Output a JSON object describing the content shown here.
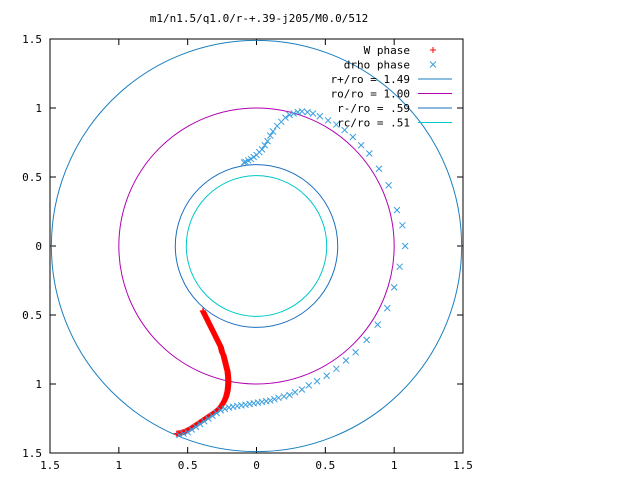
{
  "chart_data": {
    "type": "scatter",
    "title": "m1/n1.5/q1.0/r-+.39-j205/M0.0/512",
    "xlim": [
      -1.5,
      1.5
    ],
    "ylim": [
      -1.5,
      1.5
    ],
    "x_ticks": [
      -1.5,
      -1,
      -0.5,
      0,
      0.5,
      1,
      1.5
    ],
    "y_ticks": [
      -1.5,
      -1,
      -0.5,
      0,
      0.5,
      1,
      1.5
    ],
    "x_tick_labels": [
      "1.5",
      "1",
      "0.5",
      "0",
      "0.5",
      "1",
      "1.5"
    ],
    "y_tick_labels": [
      "1.5",
      "1",
      "0.5",
      "0",
      "0.5",
      "1",
      "1.5"
    ],
    "legend_position": "top-right",
    "circles": [
      {
        "name": "r+/ro = 1.49",
        "radius": 1.49,
        "color": "#1a7fbf"
      },
      {
        "name": "ro/ro = 1.00",
        "radius": 1.0,
        "color": "#b100b1"
      },
      {
        "name": "r-/ro = .59",
        "radius": 0.59,
        "color": "#1a6fbf"
      },
      {
        "name": "rc/ro = .51",
        "radius": 0.51,
        "color": "#00c8c8"
      }
    ],
    "series": [
      {
        "name": "W phase",
        "marker": "plus",
        "color": "#ff0000",
        "points": [
          [
            -0.39,
            -0.47
          ],
          [
            -0.38,
            -0.49
          ],
          [
            -0.37,
            -0.51
          ],
          [
            -0.36,
            -0.53
          ],
          [
            -0.35,
            -0.55
          ],
          [
            -0.34,
            -0.57
          ],
          [
            -0.33,
            -0.59
          ],
          [
            -0.32,
            -0.61
          ],
          [
            -0.31,
            -0.63
          ],
          [
            -0.3,
            -0.65
          ],
          [
            -0.29,
            -0.67
          ],
          [
            -0.28,
            -0.69
          ],
          [
            -0.27,
            -0.71
          ],
          [
            -0.26,
            -0.73
          ],
          [
            -0.255,
            -0.75
          ],
          [
            -0.25,
            -0.77
          ],
          [
            -0.24,
            -0.79
          ],
          [
            -0.235,
            -0.81
          ],
          [
            -0.23,
            -0.83
          ],
          [
            -0.225,
            -0.85
          ],
          [
            -0.22,
            -0.87
          ],
          [
            -0.215,
            -0.89
          ],
          [
            -0.21,
            -0.91
          ],
          [
            -0.208,
            -0.93
          ],
          [
            -0.206,
            -0.95
          ],
          [
            -0.205,
            -0.97
          ],
          [
            -0.205,
            -0.99
          ],
          [
            -0.206,
            -1.01
          ],
          [
            -0.208,
            -1.03
          ],
          [
            -0.21,
            -1.05
          ],
          [
            -0.215,
            -1.07
          ],
          [
            -0.22,
            -1.09
          ],
          [
            -0.228,
            -1.11
          ],
          [
            -0.238,
            -1.13
          ],
          [
            -0.25,
            -1.15
          ],
          [
            -0.265,
            -1.17
          ],
          [
            -0.285,
            -1.19
          ],
          [
            -0.31,
            -1.21
          ],
          [
            -0.34,
            -1.23
          ],
          [
            -0.37,
            -1.25
          ],
          [
            -0.4,
            -1.27
          ],
          [
            -0.43,
            -1.29
          ],
          [
            -0.46,
            -1.31
          ],
          [
            -0.49,
            -1.33
          ],
          [
            -0.52,
            -1.345
          ],
          [
            -0.55,
            -1.355
          ],
          [
            -0.58,
            -1.36
          ]
        ]
      },
      {
        "name": "drho phase",
        "marker": "cross",
        "color": "#3b9fe0",
        "points": [
          [
            -0.56,
            -1.37
          ],
          [
            -0.53,
            -1.36
          ],
          [
            -0.5,
            -1.35
          ],
          [
            -0.47,
            -1.33
          ],
          [
            -0.44,
            -1.31
          ],
          [
            -0.41,
            -1.29
          ],
          [
            -0.38,
            -1.27
          ],
          [
            -0.35,
            -1.25
          ],
          [
            -0.32,
            -1.23
          ],
          [
            -0.29,
            -1.21
          ],
          [
            -0.26,
            -1.19
          ],
          [
            -0.23,
            -1.18
          ],
          [
            -0.2,
            -1.17
          ],
          [
            -0.17,
            -1.165
          ],
          [
            -0.14,
            -1.16
          ],
          [
            -0.11,
            -1.155
          ],
          [
            -0.08,
            -1.15
          ],
          [
            -0.05,
            -1.145
          ],
          [
            -0.02,
            -1.14
          ],
          [
            0.01,
            -1.135
          ],
          [
            0.04,
            -1.13
          ],
          [
            0.07,
            -1.125
          ],
          [
            0.1,
            -1.12
          ],
          [
            0.13,
            -1.11
          ],
          [
            0.16,
            -1.1
          ],
          [
            0.2,
            -1.09
          ],
          [
            0.24,
            -1.08
          ],
          [
            0.28,
            -1.06
          ],
          [
            0.33,
            -1.04
          ],
          [
            0.38,
            -1.01
          ],
          [
            0.44,
            -0.98
          ],
          [
            0.51,
            -0.94
          ],
          [
            0.58,
            -0.89
          ],
          [
            0.65,
            -0.83
          ],
          [
            0.72,
            -0.77
          ],
          [
            0.8,
            -0.68
          ],
          [
            0.88,
            -0.57
          ],
          [
            0.95,
            -0.45
          ],
          [
            1.0,
            -0.3
          ],
          [
            1.04,
            -0.15
          ],
          [
            1.08,
            0.0
          ],
          [
            1.06,
            0.15
          ],
          [
            1.02,
            0.26
          ],
          [
            0.96,
            0.44
          ],
          [
            0.89,
            0.56
          ],
          [
            0.82,
            0.67
          ],
          [
            0.76,
            0.73
          ],
          [
            0.7,
            0.79
          ],
          [
            0.64,
            0.84
          ],
          [
            0.58,
            0.88
          ],
          [
            0.52,
            0.91
          ],
          [
            0.46,
            0.94
          ],
          [
            0.41,
            0.96
          ],
          [
            0.37,
            0.97
          ],
          [
            0.33,
            0.975
          ],
          [
            0.3,
            0.97
          ],
          [
            0.27,
            0.96
          ],
          [
            0.24,
            0.95
          ],
          [
            0.21,
            0.93
          ],
          [
            0.18,
            0.9
          ],
          [
            0.15,
            0.87
          ],
          [
            0.12,
            0.83
          ],
          [
            0.1,
            0.8
          ],
          [
            0.08,
            0.76
          ],
          [
            0.06,
            0.73
          ],
          [
            0.04,
            0.7
          ],
          [
            0.02,
            0.68
          ],
          [
            0.0,
            0.66
          ],
          [
            -0.02,
            0.645
          ],
          [
            -0.04,
            0.63
          ],
          [
            -0.06,
            0.62
          ],
          [
            -0.08,
            0.61
          ],
          [
            -0.09,
            0.605
          ]
        ]
      }
    ]
  }
}
